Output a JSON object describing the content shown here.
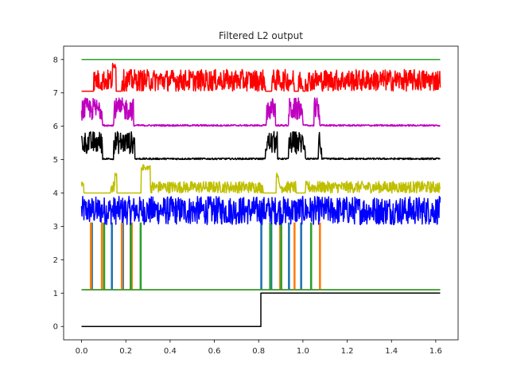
{
  "chart_data": {
    "type": "line",
    "title": "Filtered L2 output",
    "xlabel": "",
    "ylabel": "",
    "xlim": [
      -0.081,
      1.701
    ],
    "ylim": [
      -0.4,
      8.4
    ],
    "grid": false,
    "legend": "none",
    "x_ticks": [
      0.0,
      0.2,
      0.4,
      0.6,
      0.8,
      1.0,
      1.2,
      1.4,
      1.6
    ],
    "x_tick_labels": [
      "0.0",
      "0.2",
      "0.4",
      "0.6",
      "0.8",
      "1.0",
      "1.2",
      "1.4",
      "1.6"
    ],
    "y_ticks": [
      0,
      1,
      2,
      3,
      4,
      5,
      6,
      7,
      8
    ],
    "y_tick_labels": [
      "0",
      "1",
      "2",
      "3",
      "4",
      "5",
      "6",
      "7",
      "8"
    ],
    "x_max": 1.62,
    "series": [
      {
        "kind": "step",
        "color": "#000000",
        "low": 0,
        "high": 1,
        "step_x": 0.81
      },
      {
        "kind": "flat",
        "color": "#2ca02c",
        "y": 1.1
      },
      {
        "kind": "flat",
        "color": "#2ca02c",
        "y": 8.0
      },
      {
        "kind": "spikes",
        "color": "#1f77b4",
        "base": 1.1,
        "top": 3.1,
        "x": [
          0.045,
          0.135,
          0.185,
          0.81,
          0.855,
          0.935,
          0.99
        ]
      },
      {
        "kind": "spikes",
        "color": "#ff7f0e",
        "base": 1.1,
        "top": 3.1,
        "x": [
          0.04,
          0.09,
          0.18,
          0.225,
          0.895,
          0.96,
          1.075
        ]
      },
      {
        "kind": "spikes",
        "color": "#2ca02c",
        "base": 1.1,
        "top": 3.1,
        "x": [
          0.1,
          0.22,
          0.265,
          0.85,
          0.9,
          1.035
        ]
      },
      {
        "kind": "noisy",
        "color": "#0000ff",
        "base": 3.05,
        "amp": 0.85,
        "gaps": []
      },
      {
        "kind": "noisy",
        "color": "#bfbf00",
        "base": 4.0,
        "amp": 0.35,
        "gaps": [
          [
            0.01,
            0.13
          ],
          [
            0.16,
            0.27
          ],
          [
            0.82,
            0.89
          ],
          [
            0.97,
            1.01
          ]
        ],
        "bursts": [
          [
            0.27,
            0.31,
            0.85
          ],
          [
            0.15,
            0.16,
            0.6
          ],
          [
            0.88,
            0.89,
            0.6
          ]
        ]
      },
      {
        "kind": "bursty",
        "color": "#000000",
        "base": 5.0,
        "amp": 0.85,
        "active": [
          [
            0.0,
            0.095
          ],
          [
            0.145,
            0.24
          ],
          [
            0.83,
            0.885
          ],
          [
            0.935,
            1.01
          ],
          [
            1.07,
            1.085
          ]
        ]
      },
      {
        "kind": "bursty",
        "color": "#bf00bf",
        "base": 6.0,
        "amp": 0.85,
        "active": [
          [
            0.0,
            0.095
          ],
          [
            0.145,
            0.235
          ],
          [
            0.835,
            0.875
          ],
          [
            0.935,
            1.0
          ],
          [
            1.05,
            1.075
          ]
        ]
      },
      {
        "kind": "noisy",
        "color": "#ff0000",
        "base": 7.05,
        "amp": 0.65,
        "gaps": [
          [
            0.0,
            0.055
          ],
          [
            0.155,
            0.18
          ],
          [
            0.83,
            0.86
          ],
          [
            0.96,
            0.98
          ],
          [
            1.0,
            1.01
          ]
        ],
        "bursts": [
          [
            0.14,
            0.155,
            0.85
          ]
        ]
      }
    ]
  }
}
